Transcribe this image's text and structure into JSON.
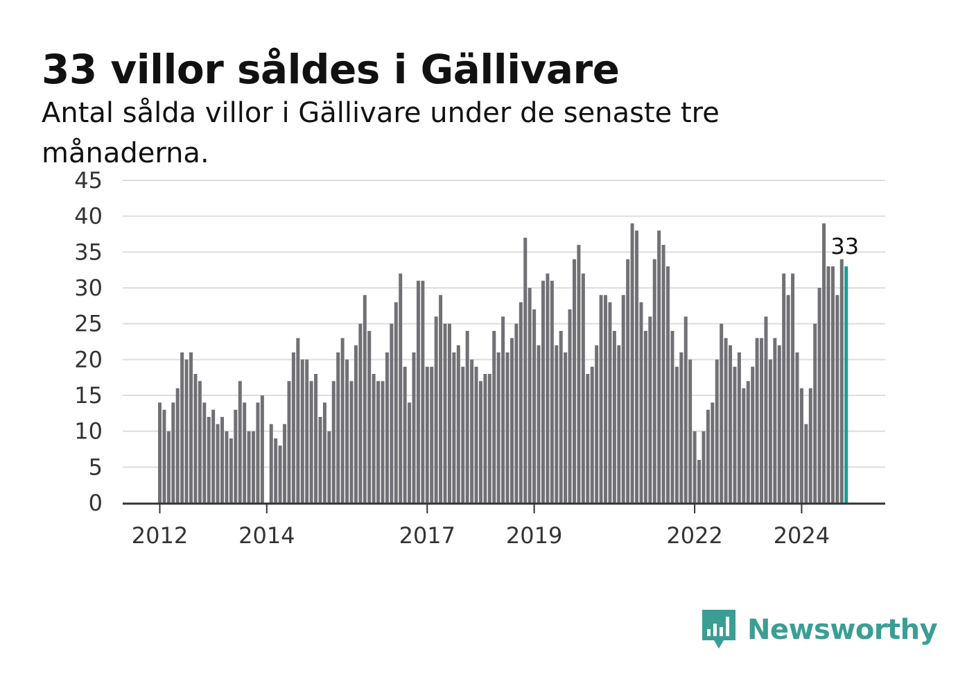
{
  "title": "33 villor såldes i Gällivare",
  "subtitle": "Antal sålda villor i Gällivare under de senaste tre månaderna.",
  "brand": {
    "name": "Newsworthy",
    "color": "#3b9e94",
    "icon": "bar-chart-speech-bubble-icon"
  },
  "colors": {
    "bar": "#717075",
    "highlight": "#179e94",
    "grid": "#dddddd",
    "axis": "#333333"
  },
  "chart_data": {
    "type": "bar",
    "title": "33 villor såldes i Gällivare",
    "subtitle": "Antal sålda villor i Gällivare under de senaste tre månaderna.",
    "xlabel": "",
    "ylabel": "",
    "ylim": [
      0,
      45
    ],
    "yticks": [
      "0",
      "5",
      "10",
      "15",
      "20",
      "25",
      "30",
      "35",
      "40",
      "45"
    ],
    "xticks": [
      {
        "label": "2012",
        "index": 0
      },
      {
        "label": "2014",
        "index": 24
      },
      {
        "label": "2017",
        "index": 60
      },
      {
        "label": "2019",
        "index": 84
      },
      {
        "label": "2022",
        "index": 120
      },
      {
        "label": "2024",
        "index": 144
      }
    ],
    "grid": true,
    "legend": "none",
    "start_month": "2012-01",
    "highlight_index": 154,
    "highlight_label": "33",
    "values": [
      14,
      13,
      10,
      14,
      16,
      21,
      20,
      21,
      18,
      17,
      14,
      12,
      13,
      11,
      12,
      10,
      9,
      13,
      17,
      14,
      10,
      10,
      14,
      15,
      0,
      11,
      9,
      8,
      11,
      17,
      21,
      23,
      20,
      20,
      17,
      18,
      12,
      14,
      10,
      17,
      21,
      23,
      20,
      17,
      22,
      25,
      29,
      24,
      18,
      17,
      17,
      21,
      25,
      28,
      32,
      19,
      14,
      21,
      31,
      31,
      19,
      19,
      26,
      29,
      25,
      25,
      21,
      22,
      19,
      24,
      20,
      19,
      17,
      18,
      18,
      24,
      21,
      26,
      21,
      23,
      25,
      28,
      37,
      30,
      27,
      22,
      31,
      32,
      31,
      22,
      24,
      21,
      27,
      34,
      36,
      32,
      18,
      19,
      22,
      29,
      29,
      28,
      24,
      22,
      29,
      34,
      39,
      38,
      28,
      24,
      26,
      34,
      38,
      36,
      33,
      24,
      19,
      21,
      26,
      20,
      10,
      6,
      10,
      13,
      14,
      20,
      25,
      23,
      22,
      19,
      21,
      16,
      17,
      19,
      23,
      23,
      26,
      20,
      23,
      22,
      32,
      29,
      32,
      21,
      16,
      11,
      16,
      25,
      30,
      39,
      33,
      33,
      29,
      34,
      33
    ]
  }
}
